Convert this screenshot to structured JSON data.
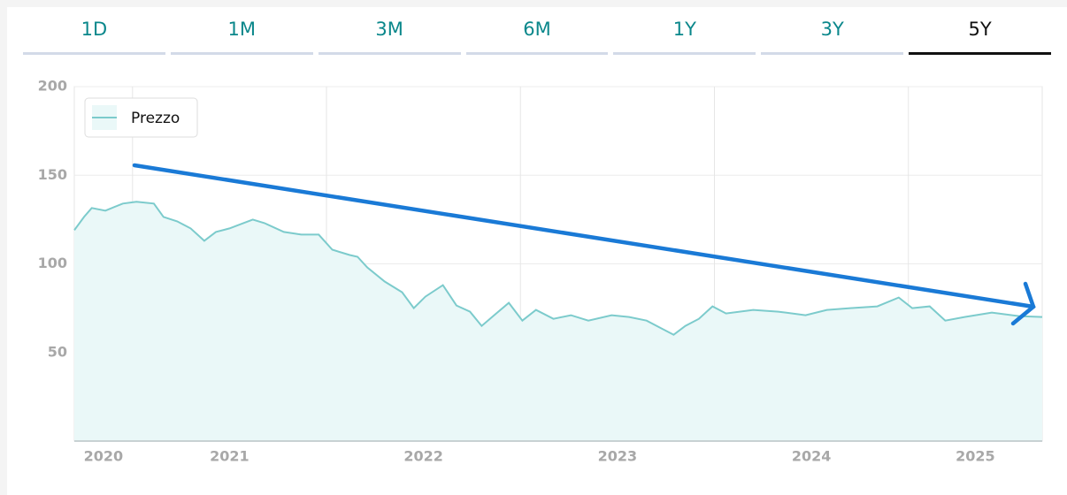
{
  "tabs": [
    "1D",
    "1M",
    "3M",
    "6M",
    "1Y",
    "3Y",
    "5Y"
  ],
  "active_tab": 6,
  "chart_data": {
    "type": "area",
    "x": [
      2020.7,
      2020.75,
      2020.79,
      2020.86,
      2020.95,
      2021.02,
      2021.11,
      2021.16,
      2021.23,
      2021.3,
      2021.37,
      2021.43,
      2021.5,
      2021.62,
      2021.68,
      2021.78,
      2021.87,
      2021.96,
      2022.03,
      2022.12,
      2022.16,
      2022.21,
      2022.3,
      2022.39,
      2022.45,
      2022.51,
      2022.6,
      2022.67,
      2022.74,
      2022.8,
      2022.87,
      2022.94,
      2023.01,
      2023.08,
      2023.17,
      2023.26,
      2023.35,
      2023.47,
      2023.56,
      2023.65,
      2023.72,
      2023.79,
      2023.85,
      2023.92,
      2023.99,
      2024.06,
      2024.2,
      2024.33,
      2024.47,
      2024.58,
      2024.7,
      2024.84,
      2024.95,
      2025.02,
      2025.11,
      2025.19,
      2025.29,
      2025.43,
      2025.57,
      2025.69
    ],
    "series": [
      {
        "name": "Prezzo",
        "color": "#7ccbcc",
        "fill": "#eaf8f8",
        "values": [
          119,
          126.5,
          131.5,
          130,
          134,
          135,
          134,
          126.5,
          124,
          120,
          113,
          118,
          120,
          125,
          123,
          118,
          116.5,
          116.5,
          108,
          105,
          104,
          98,
          90,
          84,
          75,
          81.5,
          88,
          76.5,
          73,
          65,
          71.5,
          78,
          68,
          74,
          69,
          71,
          68,
          71,
          70,
          68,
          64,
          60,
          65,
          69,
          76,
          72,
          74,
          73,
          71,
          74,
          75,
          76,
          81,
          75,
          76,
          68,
          70,
          72.5,
          70.5,
          70
        ]
      }
    ],
    "xlim": [
      2020.7,
      2025.69
    ],
    "xticks": [
      2020,
      2021,
      2022,
      2023,
      2024,
      2025
    ],
    "ylim": [
      0,
      200
    ],
    "yticks": [
      50,
      100,
      150,
      200
    ],
    "grid": true,
    "legend": "top-left"
  }
}
